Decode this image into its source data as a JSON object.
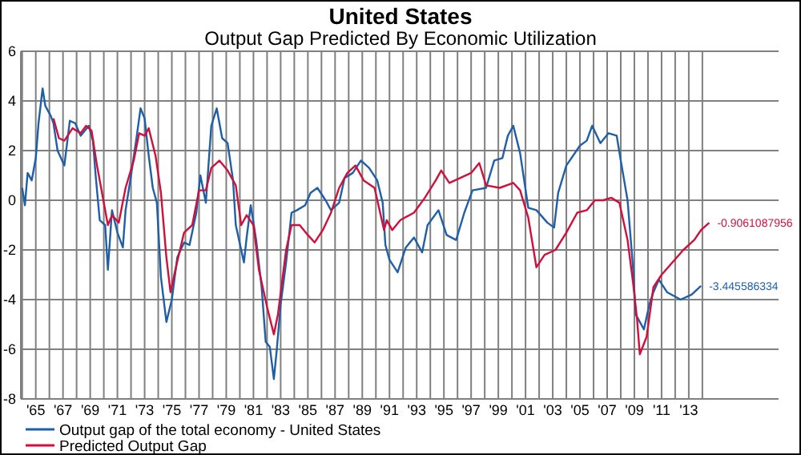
{
  "chart_data": {
    "type": "line",
    "title": "United States",
    "subtitle": "Output Gap Predicted By Economic Utilization",
    "xlim": [
      1963.9,
      2019.6
    ],
    "ylim": [
      -8,
      6
    ],
    "yticks": [
      -8,
      -6,
      -4,
      -2,
      0,
      2,
      4,
      6
    ],
    "xticks": [
      {
        "value": 1964,
        "label": null
      },
      {
        "value": 1965,
        "label": "'65"
      },
      {
        "value": 1966,
        "label": null
      },
      {
        "value": 1967,
        "label": "'67"
      },
      {
        "value": 1968,
        "label": null
      },
      {
        "value": 1969,
        "label": "'69"
      },
      {
        "value": 1970,
        "label": null
      },
      {
        "value": 1971,
        "label": "'71"
      },
      {
        "value": 1972,
        "label": null
      },
      {
        "value": 1973,
        "label": "'73"
      },
      {
        "value": 1974,
        "label": null
      },
      {
        "value": 1975,
        "label": "'75"
      },
      {
        "value": 1976,
        "label": null
      },
      {
        "value": 1977,
        "label": "'77"
      },
      {
        "value": 1978,
        "label": null
      },
      {
        "value": 1979,
        "label": "'79"
      },
      {
        "value": 1980,
        "label": null
      },
      {
        "value": 1981,
        "label": "'81"
      },
      {
        "value": 1982,
        "label": null
      },
      {
        "value": 1983,
        "label": "'83"
      },
      {
        "value": 1984,
        "label": null
      },
      {
        "value": 1985,
        "label": "'85"
      },
      {
        "value": 1986,
        "label": null
      },
      {
        "value": 1987,
        "label": "'87"
      },
      {
        "value": 1988,
        "label": null
      },
      {
        "value": 1989,
        "label": "'89"
      },
      {
        "value": 1990,
        "label": null
      },
      {
        "value": 1991,
        "label": "'91"
      },
      {
        "value": 1992,
        "label": null
      },
      {
        "value": 1993,
        "label": "'93"
      },
      {
        "value": 1994,
        "label": null
      },
      {
        "value": 1995,
        "label": "'95"
      },
      {
        "value": 1996,
        "label": null
      },
      {
        "value": 1997,
        "label": "'97"
      },
      {
        "value": 1998,
        "label": null
      },
      {
        "value": 1999,
        "label": "'99"
      },
      {
        "value": 2000,
        "label": null
      },
      {
        "value": 2001,
        "label": "'01"
      },
      {
        "value": 2002,
        "label": null
      },
      {
        "value": 2003,
        "label": "'03"
      },
      {
        "value": 2004,
        "label": null
      },
      {
        "value": 2005,
        "label": "'05"
      },
      {
        "value": 2006,
        "label": null
      },
      {
        "value": 2007,
        "label": "'07"
      },
      {
        "value": 2008,
        "label": null
      },
      {
        "value": 2009,
        "label": "'09"
      },
      {
        "value": 2010,
        "label": null
      },
      {
        "value": 2011,
        "label": "'11"
      },
      {
        "value": 2012,
        "label": null
      },
      {
        "value": 2013,
        "label": "'13"
      },
      {
        "value": 2014,
        "label": null
      }
    ],
    "grid": true,
    "legend": "bottom left",
    "series": [
      {
        "name": "Output gap of the total economy - United States",
        "color": "#1f5fa8",
        "x": [
          1964.0,
          1964.2,
          1964.4,
          1964.7,
          1965.0,
          1965.2,
          1965.5,
          1965.7,
          1966.1,
          1966.3,
          1966.6,
          1967.1,
          1967.5,
          1967.9,
          1968.3,
          1968.9,
          1969.2,
          1969.4,
          1969.7,
          1970.1,
          1970.3,
          1970.6,
          1971.0,
          1971.4,
          1971.6,
          1972.0,
          1972.4,
          1972.7,
          1973.0,
          1973.3,
          1973.6,
          1973.9,
          1974.2,
          1974.6,
          1975.0,
          1975.4,
          1975.9,
          1976.3,
          1976.8,
          1977.1,
          1977.5,
          1977.9,
          1978.3,
          1978.7,
          1979.1,
          1979.5,
          1979.7,
          1980.1,
          1980.3,
          1980.5,
          1980.8,
          1981.2,
          1981.6,
          1981.9,
          1982.2,
          1982.5,
          1982.7,
          1983.0,
          1983.4,
          1983.8,
          1984.2,
          1984.8,
          1985.2,
          1985.7,
          1986.3,
          1986.7,
          1987.3,
          1987.7,
          1988.3,
          1988.9,
          1989.5,
          1990.1,
          1990.5,
          1990.7,
          1991.0,
          1991.6,
          1992.2,
          1992.8,
          1993.4,
          1993.8,
          1994.6,
          1995.2,
          1995.9,
          1996.5,
          1997.1,
          1998.1,
          1998.7,
          1999.3,
          1999.7,
          2000.1,
          2000.6,
          2001.2,
          2001.8,
          2002.6,
          2003.1,
          2003.4,
          2004.0,
          2005.0,
          2005.5,
          2005.9,
          2006.5,
          2007.1,
          2007.7,
          2008.0,
          2008.5,
          2008.9,
          2009.1,
          2009.7,
          2010.1,
          2010.4,
          2010.8,
          2011.4,
          2012.4,
          2013.2,
          2013.9
        ],
        "values": [
          0.5,
          -0.2,
          1.1,
          0.8,
          1.7,
          3.1,
          4.5,
          3.8,
          3.4,
          3.1,
          2.0,
          1.4,
          3.2,
          3.1,
          2.6,
          3.0,
          2.4,
          1.0,
          -0.8,
          -1.0,
          -2.8,
          -0.4,
          -1.3,
          -1.9,
          -0.4,
          1.0,
          2.5,
          3.7,
          3.3,
          1.8,
          0.5,
          -0.1,
          -3.1,
          -4.9,
          -4.0,
          -2.3,
          -1.7,
          -1.8,
          -0.5,
          1.0,
          -0.1,
          3.0,
          3.7,
          2.5,
          2.3,
          0.8,
          -1.0,
          -2.0,
          -2.5,
          -1.5,
          -0.2,
          -1.6,
          -3.5,
          -5.7,
          -5.9,
          -7.2,
          -6.1,
          -4.2,
          -2.5,
          -0.5,
          -0.4,
          -0.2,
          0.3,
          0.5,
          0.0,
          -0.4,
          -0.1,
          0.9,
          1.1,
          1.6,
          1.3,
          0.8,
          -0.1,
          -1.8,
          -2.4,
          -2.9,
          -1.9,
          -1.5,
          -2.1,
          -1.0,
          -0.4,
          -1.4,
          -1.6,
          -0.5,
          0.4,
          0.5,
          1.6,
          1.7,
          2.6,
          3.0,
          1.9,
          -0.3,
          -0.4,
          -0.9,
          -1.1,
          0.3,
          1.4,
          2.2,
          2.4,
          3.0,
          2.3,
          2.7,
          2.6,
          1.6,
          0.0,
          -2.7,
          -4.6,
          -5.2,
          -4.2,
          -3.7,
          -3.2,
          -3.7,
          -4.0,
          -3.8,
          -3.45
        ]
      },
      {
        "name": "Predicted Output Gap",
        "color": "#d0103a",
        "x": [
          1966.3,
          1966.7,
          1967.1,
          1967.7,
          1968.3,
          1968.7,
          1969.1,
          1969.5,
          1969.9,
          1970.3,
          1970.6,
          1971.1,
          1971.6,
          1972.2,
          1972.6,
          1973.0,
          1973.3,
          1973.8,
          1974.2,
          1974.6,
          1974.9,
          1975.3,
          1975.9,
          1976.5,
          1977.0,
          1977.5,
          1977.9,
          1978.5,
          1979.1,
          1979.7,
          1980.1,
          1980.5,
          1981.0,
          1981.4,
          1982.0,
          1982.5,
          1982.8,
          1983.4,
          1983.8,
          1984.4,
          1985.0,
          1985.5,
          1986.1,
          1986.7,
          1987.3,
          1987.9,
          1988.5,
          1989.1,
          1989.9,
          1990.6,
          1990.8,
          1991.2,
          1991.8,
          1992.8,
          1993.6,
          1994.4,
          1994.8,
          1995.4,
          1996.2,
          1997.0,
          1997.6,
          1998.1,
          1999.1,
          2000.1,
          2000.6,
          2001.2,
          2001.8,
          2002.4,
          2003.2,
          2004.0,
          2004.8,
          2005.5,
          2006.1,
          2006.7,
          2007.3,
          2007.9,
          2008.5,
          2008.9,
          2009.2,
          2009.4,
          2009.9,
          2010.4,
          2011.0,
          2011.8,
          2012.6,
          2013.4,
          2013.9,
          2014.5
        ],
        "values": [
          3.3,
          2.5,
          2.4,
          2.9,
          2.7,
          3.0,
          2.8,
          1.4,
          0.2,
          -1.0,
          -0.6,
          -0.9,
          0.5,
          1.6,
          2.7,
          2.6,
          2.9,
          1.8,
          0.3,
          -2.3,
          -3.7,
          -2.7,
          -1.3,
          -1.0,
          0.4,
          0.4,
          1.3,
          1.6,
          1.2,
          0.6,
          -1.0,
          -0.6,
          -1.0,
          -2.8,
          -4.3,
          -5.4,
          -4.6,
          -2.0,
          -1.0,
          -1.0,
          -1.4,
          -1.7,
          -1.2,
          -0.5,
          0.5,
          1.1,
          1.4,
          0.8,
          0.5,
          -1.2,
          -0.8,
          -1.2,
          -0.8,
          -0.5,
          0.1,
          0.8,
          1.2,
          0.7,
          0.9,
          1.1,
          1.5,
          0.6,
          0.5,
          0.7,
          0.4,
          -0.7,
          -2.7,
          -2.2,
          -2.0,
          -1.3,
          -0.5,
          -0.4,
          0.0,
          0.0,
          0.1,
          -0.1,
          -1.6,
          -3.3,
          -4.8,
          -6.2,
          -5.5,
          -3.5,
          -3.0,
          -2.5,
          -2.0,
          -1.6,
          -1.2,
          -0.91
        ]
      }
    ],
    "annotations": [
      {
        "text": "-3.445586334",
        "x": 2013.9,
        "y": -3.445586334
      },
      {
        "text": "-0.9061087956",
        "x": 2014.5,
        "y": -0.9061087956
      }
    ]
  }
}
